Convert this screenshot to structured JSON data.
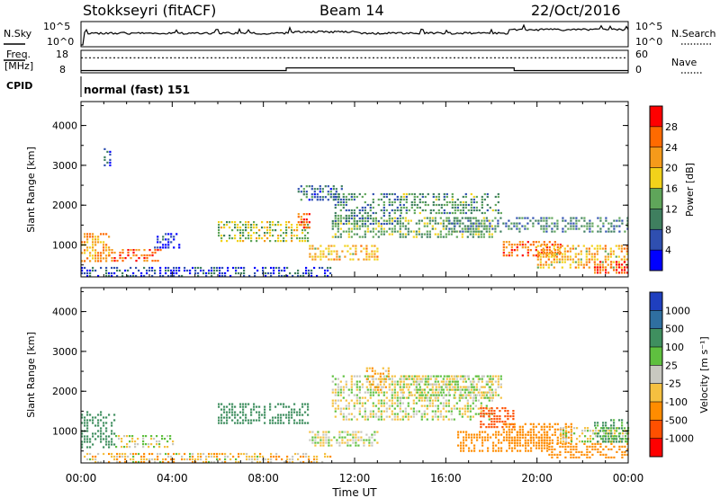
{
  "header": {
    "station": "Stokkseyri (fitACF)",
    "beam": "Beam 14",
    "date": "22/Oct/2016"
  },
  "status_panels": {
    "nsky_label": "N.Sky",
    "nsearch_label": "N.Search",
    "nsky_ticks": [
      "10^5",
      "10^0"
    ],
    "nsearch_ticks": [
      "10^5",
      "10^0"
    ],
    "freq_label_1": "Freq.",
    "freq_label_2": "[MHz]",
    "freq_ticks": [
      "18",
      "8"
    ],
    "nave_label": "Nave",
    "nave_ticks": [
      "60",
      "0"
    ],
    "cpid_label": "CPID",
    "cpid_value": "normal (fast) 151",
    "freq_steps": [
      [
        0,
        9.0
      ],
      [
        9.0,
        10.2
      ],
      [
        19.0,
        9.0
      ]
    ],
    "nave_level": 40
  },
  "chart_data": [
    {
      "type": "heatmap",
      "quantity": "power",
      "ylabel": "Slant Range [km]",
      "xlabel": "Time UT",
      "xlim": [
        0,
        24
      ],
      "ylim": [
        200,
        4600
      ],
      "xticks": [
        "00:00",
        "04:00",
        "08:00",
        "12:00",
        "16:00",
        "20:00",
        "00:00"
      ],
      "yticks": [
        1000,
        2000,
        3000,
        4000
      ],
      "colorbar": {
        "label": "Power [dB]",
        "ticks": [
          4,
          8,
          12,
          16,
          20,
          24,
          28
        ],
        "colors": [
          "#0000ff",
          "#2f4fb0",
          "#3f7f5f",
          "#5fa55a",
          "#f2d21a",
          "#f59a1a",
          "#ff6a00",
          "#ff0000"
        ]
      },
      "echo_regions": [
        {
          "t": [
            0.0,
            1.2
          ],
          "r": [
            600,
            1300
          ],
          "level": 22
        },
        {
          "t": [
            1.2,
            3.5
          ],
          "r": [
            600,
            900
          ],
          "level": 26
        },
        {
          "t": [
            0.0,
            11.0
          ],
          "r": [
            200,
            450
          ],
          "level": 6
        },
        {
          "t": [
            3.2,
            4.3
          ],
          "r": [
            900,
            1300
          ],
          "level": 4
        },
        {
          "t": [
            6.0,
            10.0
          ],
          "r": [
            1100,
            1600
          ],
          "level": 16
        },
        {
          "t": [
            9.5,
            10.0
          ],
          "r": [
            1400,
            1800
          ],
          "level": 26
        },
        {
          "t": [
            10.0,
            13.0
          ],
          "r": [
            600,
            1000
          ],
          "level": 20
        },
        {
          "t": [
            11.0,
            18.0
          ],
          "r": [
            1200,
            1700
          ],
          "level": 14
        },
        {
          "t": [
            11.0,
            14.0
          ],
          "r": [
            1500,
            2300
          ],
          "level": 10
        },
        {
          "t": [
            14.0,
            18.5
          ],
          "r": [
            1800,
            2300
          ],
          "level": 12
        },
        {
          "t": [
            16.0,
            24.0
          ],
          "r": [
            1300,
            1700
          ],
          "level": 10
        },
        {
          "t": [
            18.5,
            21.0
          ],
          "r": [
            700,
            1100
          ],
          "level": 26
        },
        {
          "t": [
            20.0,
            24.0
          ],
          "r": [
            400,
            1000
          ],
          "level": 20
        },
        {
          "t": [
            22.5,
            24.0
          ],
          "r": [
            300,
            600
          ],
          "level": 28
        },
        {
          "t": [
            9.5,
            11.5
          ],
          "r": [
            2100,
            2500
          ],
          "level": 8
        },
        {
          "t": [
            1.0,
            1.3
          ],
          "r": [
            3000,
            3500
          ],
          "level": 6
        }
      ]
    },
    {
      "type": "heatmap",
      "quantity": "velocity",
      "ylabel": "Slant Range [km]",
      "xlabel": "Time UT",
      "xlim": [
        0,
        24
      ],
      "ylim": [
        200,
        4600
      ],
      "xticks": [
        "00:00",
        "04:00",
        "08:00",
        "12:00",
        "16:00",
        "20:00",
        "00:00"
      ],
      "yticks": [
        1000,
        2000,
        3000,
        4000
      ],
      "colorbar": {
        "label": "Velocity [m s⁻¹]",
        "ticks": [
          1000,
          500,
          100,
          25,
          -25,
          -100,
          -500,
          -1000
        ],
        "colors": [
          "#1f3fbf",
          "#2f6fa0",
          "#3f8f5f",
          "#5fc03f",
          "#c8c8c0",
          "#f5c040",
          "#ff8c00",
          "#ff5000",
          "#ff0000"
        ]
      },
      "echo_regions": [
        {
          "t": [
            0.0,
            1.5
          ],
          "r": [
            600,
            1500
          ],
          "level": 300
        },
        {
          "t": [
            1.5,
            4.0
          ],
          "r": [
            600,
            900
          ],
          "level": 0
        },
        {
          "t": [
            0.0,
            11.0
          ],
          "r": [
            200,
            450
          ],
          "level": -60
        },
        {
          "t": [
            6.0,
            10.0
          ],
          "r": [
            1200,
            1700
          ],
          "level": 200
        },
        {
          "t": [
            10.0,
            13.0
          ],
          "r": [
            600,
            1000
          ],
          "level": 0
        },
        {
          "t": [
            11.0,
            18.0
          ],
          "r": [
            1300,
            2400
          ],
          "level": 0
        },
        {
          "t": [
            14.0,
            18.5
          ],
          "r": [
            1800,
            2400
          ],
          "level": 0
        },
        {
          "t": [
            17.5,
            19.0
          ],
          "r": [
            1100,
            1600
          ],
          "level": -600
        },
        {
          "t": [
            16.5,
            20.5
          ],
          "r": [
            500,
            1000
          ],
          "level": -300
        },
        {
          "t": [
            18.5,
            21.5
          ],
          "r": [
            700,
            1200
          ],
          "level": -400
        },
        {
          "t": [
            20.5,
            24.0
          ],
          "r": [
            300,
            700
          ],
          "level": -200
        },
        {
          "t": [
            21.0,
            24.0
          ],
          "r": [
            700,
            1100
          ],
          "level": 0
        },
        {
          "t": [
            22.5,
            24.0
          ],
          "r": [
            700,
            1300
          ],
          "level": 150
        },
        {
          "t": [
            12.5,
            13.5
          ],
          "r": [
            2000,
            2600
          ],
          "level": -100
        }
      ]
    }
  ]
}
